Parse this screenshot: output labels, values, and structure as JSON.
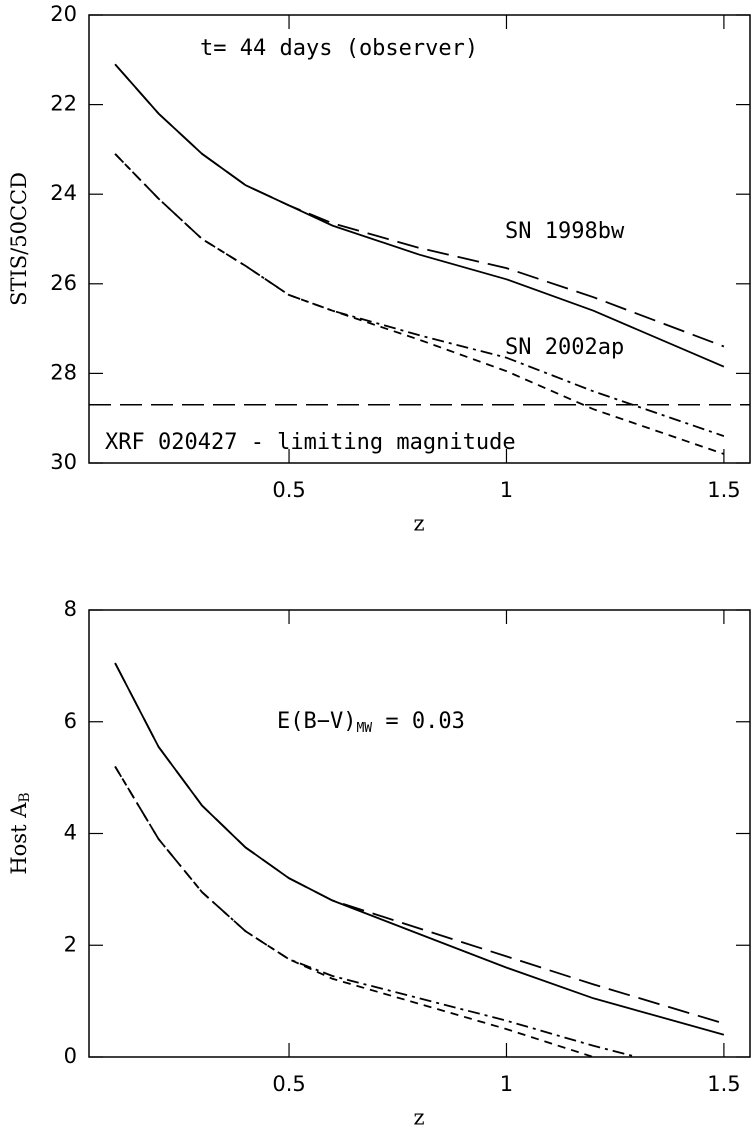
{
  "chart_data": [
    {
      "type": "line",
      "xlabel": "z",
      "ylabel": "STIS/50CCD",
      "xlim": [
        0.04,
        1.56
      ],
      "xticks": [
        0.5,
        1,
        1.5
      ],
      "ylim": [
        30,
        20
      ],
      "yticks": [
        20,
        22,
        24,
        26,
        28,
        30
      ],
      "annotations": [
        "t= 44 days (observer)",
        "SN 1998bw",
        "SN 2002ap",
        "XRF 020427 - limiting magnitude"
      ],
      "limit": 28.7,
      "x": [
        0.1,
        0.2,
        0.3,
        0.4,
        0.5,
        0.6,
        0.8,
        1.0,
        1.2,
        1.5
      ],
      "series": [
        {
          "style": "solid",
          "color": "#000000",
          "values": [
            21.1,
            22.2,
            23.1,
            23.8,
            24.25,
            24.7,
            25.35,
            25.9,
            26.6,
            27.85
          ]
        },
        {
          "style": "longdash",
          "color": "#000000",
          "values": [
            21.1,
            22.2,
            23.1,
            23.8,
            24.25,
            24.65,
            25.2,
            25.65,
            26.3,
            27.4
          ]
        },
        {
          "style": "dashed",
          "color": "#000000",
          "values": [
            23.1,
            24.1,
            25.0,
            25.6,
            26.25,
            26.6,
            27.25,
            27.95,
            28.8,
            29.8
          ]
        },
        {
          "style": "dashdot",
          "color": "#000000",
          "values": [
            23.1,
            24.1,
            25.0,
            25.6,
            26.25,
            26.6,
            27.15,
            27.65,
            28.4,
            29.4
          ]
        }
      ]
    },
    {
      "type": "line",
      "xlabel": "z",
      "ylabel": "Host A",
      "ylabel_sub": "B",
      "xlim": [
        0.04,
        1.56
      ],
      "xticks": [
        0.5,
        1,
        1.5
      ],
      "ylim": [
        0,
        8
      ],
      "yticks": [
        0,
        2,
        4,
        6,
        8
      ],
      "annotation": "E(B−V)",
      "annotation_sub": "MW",
      "annotation_tail": " = 0.03",
      "series": [
        {
          "style": "solid",
          "color": "#000000",
          "x": [
            0.1,
            0.2,
            0.3,
            0.4,
            0.5,
            0.6,
            0.8,
            1.0,
            1.2,
            1.5
          ],
          "values": [
            7.05,
            5.55,
            4.5,
            3.75,
            3.2,
            2.8,
            2.2,
            1.6,
            1.05,
            0.4
          ]
        },
        {
          "style": "longdash",
          "color": "#000000",
          "x": [
            0.1,
            0.2,
            0.3,
            0.4,
            0.5,
            0.6,
            0.8,
            1.0,
            1.2,
            1.5
          ],
          "values": [
            7.05,
            5.55,
            4.5,
            3.75,
            3.2,
            2.8,
            2.3,
            1.8,
            1.3,
            0.6
          ]
        },
        {
          "style": "dashed",
          "color": "#000000",
          "x": [
            0.1,
            0.2,
            0.3,
            0.4,
            0.5,
            0.6,
            0.8,
            1.0,
            1.2
          ],
          "values": [
            5.2,
            3.9,
            2.95,
            2.25,
            1.75,
            1.4,
            0.95,
            0.5,
            0.0
          ]
        },
        {
          "style": "dashdot",
          "color": "#000000",
          "x": [
            0.1,
            0.2,
            0.3,
            0.4,
            0.5,
            0.6,
            0.8,
            1.0,
            1.2,
            1.3
          ],
          "values": [
            5.2,
            3.9,
            2.95,
            2.25,
            1.75,
            1.45,
            1.05,
            0.65,
            0.2,
            0.0
          ]
        }
      ]
    }
  ]
}
